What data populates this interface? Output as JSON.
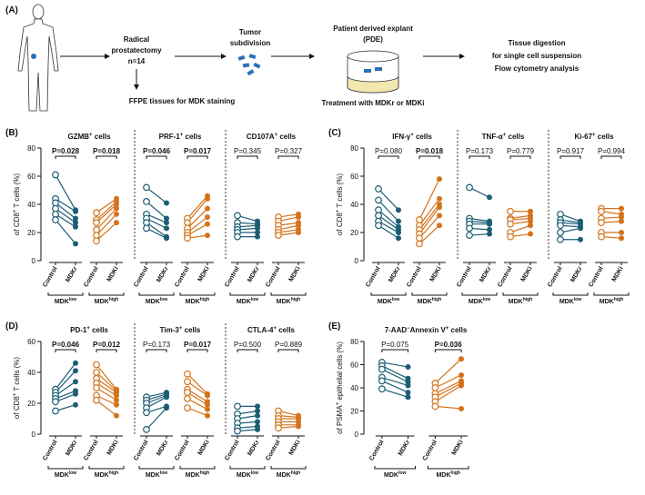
{
  "diagram": {
    "label": "(A)",
    "surgery": [
      "Radical",
      "prostatectomy",
      "n=14"
    ],
    "ffpe": "FFPE tissues for MDK staining",
    "subdivision": [
      "Tumor",
      "subdivision"
    ],
    "pde": [
      "Patient derived explant",
      "(PDE)"
    ],
    "treatment": "Treatment with MDKr or MDKi",
    "analysis": [
      "Tissue digestion",
      "for single cell suspension",
      "Flow cytometry analysis"
    ]
  },
  "chart_data": [
    {
      "type": "paired",
      "label": "(B)",
      "ylabel": [
        {
          "text": "of CD8"
        },
        {
          "sup": "+"
        },
        {
          "text": " T cells (%)"
        }
      ],
      "ylim": [
        0,
        80
      ],
      "yticks": [
        0,
        20,
        40,
        60,
        80
      ],
      "subplots": [
        {
          "title": [
            {
              "text": "GZMB"
            },
            {
              "sup": "+"
            },
            {
              "text": " cells"
            }
          ],
          "groups": [
            {
              "name": "MDK",
              "name_sup": "low",
              "xlabels": [
                "Control",
                "MDKr"
              ],
              "color": "#1b5e74",
              "p": "P=0.028",
              "p_bold": true,
              "before": [
                61,
                44,
                41,
                37,
                33,
                29
              ],
              "after": [
                36,
                35,
                30,
                27,
                24,
                12
              ]
            },
            {
              "name": "MDK",
              "name_sup": "high",
              "xlabels": [
                "Control",
                "MDKi"
              ],
              "color": "#d4731c",
              "p": "P=0.018",
              "p_bold": true,
              "before": [
                34,
                29,
                27,
                22,
                18,
                14
              ],
              "after": [
                44,
                42,
                40,
                37,
                33,
                27
              ]
            }
          ]
        },
        {
          "title": [
            {
              "text": "PRF-1"
            },
            {
              "sup": "+"
            },
            {
              "text": " cells"
            }
          ],
          "groups": [
            {
              "name": "MDK",
              "name_sup": "low",
              "xlabels": [
                "Control",
                "MDKr"
              ],
              "color": "#1b5e74",
              "p": "P=0.046",
              "p_bold": true,
              "before": [
                52,
                42,
                33,
                30,
                27,
                23
              ],
              "after": [
                41,
                30,
                27,
                23,
                17,
                16
              ]
            },
            {
              "name": "MDK",
              "name_sup": "high",
              "xlabels": [
                "Control",
                "MDKi"
              ],
              "color": "#d4731c",
              "p": "P=0.017",
              "p_bold": true,
              "before": [
                30,
                27,
                23,
                20,
                18,
                16
              ],
              "after": [
                46,
                44,
                37,
                31,
                26,
                18
              ]
            }
          ]
        },
        {
          "title": [
            {
              "text": "CD107A"
            },
            {
              "sup": "+"
            },
            {
              "text": " cells"
            }
          ],
          "groups": [
            {
              "name": "MDK",
              "name_sup": "low",
              "xlabels": [
                "Control",
                "MDKr"
              ],
              "color": "#1b5e74",
              "p": "P=0.345",
              "p_bold": false,
              "before": [
                32,
                27,
                24,
                22,
                20,
                17
              ],
              "after": [
                28,
                26,
                25,
                23,
                20,
                17
              ]
            },
            {
              "name": "MDK",
              "name_sup": "high",
              "xlabels": [
                "Control",
                "MDKi"
              ],
              "color": "#d4731c",
              "p": "P=0.327",
              "p_bold": false,
              "before": [
                31,
                28,
                25,
                22,
                20,
                18
              ],
              "after": [
                33,
                31,
                27,
                25,
                22,
                20
              ]
            }
          ]
        }
      ]
    },
    {
      "type": "paired",
      "label": "(C)",
      "ylabel": [
        {
          "text": "of CD8"
        },
        {
          "sup": "+"
        },
        {
          "text": " T cells (%)"
        }
      ],
      "ylim": [
        0,
        80
      ],
      "yticks": [
        0,
        20,
        40,
        60,
        80
      ],
      "subplots": [
        {
          "title": [
            {
              "text": "IFN-γ"
            },
            {
              "sup": "+"
            },
            {
              "text": " cells"
            }
          ],
          "groups": [
            {
              "name": "MDK",
              "name_sup": "low",
              "xlabels": [
                "Control",
                "MDKr"
              ],
              "color": "#1b5e74",
              "p": "P=0.080",
              "p_bold": false,
              "before": [
                51,
                43,
                36,
                32,
                28,
                25
              ],
              "after": [
                36,
                28,
                24,
                22,
                20,
                16
              ]
            },
            {
              "name": "MDK",
              "name_sup": "high",
              "xlabels": [
                "Control",
                "MDKi"
              ],
              "color": "#d4731c",
              "p": "P=0.018",
              "p_bold": true,
              "before": [
                29,
                25,
                22,
                19,
                16,
                12
              ],
              "after": [
                58,
                44,
                40,
                38,
                32,
                25
              ]
            }
          ]
        },
        {
          "title": [
            {
              "text": "TNF-α"
            },
            {
              "sup": "+"
            },
            {
              "text": " cells"
            }
          ],
          "groups": [
            {
              "name": "MDK",
              "name_sup": "low",
              "xlabels": [
                "Control",
                "MDKr"
              ],
              "color": "#1b5e74",
              "p": "P=0.173",
              "p_bold": false,
              "before": [
                52,
                30,
                28,
                26,
                23,
                18
              ],
              "after": [
                45,
                28,
                27,
                26,
                22,
                19
              ]
            },
            {
              "name": "MDK",
              "name_sup": "high",
              "xlabels": [
                "Control",
                "MDKi"
              ],
              "color": "#d4731c",
              "p": "P=0.779",
              "p_bold": false,
              "before": [
                35,
                30,
                29,
                26,
                20,
                17
              ],
              "after": [
                35,
                32,
                30,
                28,
                25,
                19
              ]
            }
          ]
        },
        {
          "title": [
            {
              "text": "Ki-67"
            },
            {
              "sup": "+"
            },
            {
              "text": " cells"
            }
          ],
          "groups": [
            {
              "name": "MDK",
              "name_sup": "low",
              "xlabels": [
                "Control",
                "MDKr"
              ],
              "color": "#1b5e74",
              "p": "P=0.917",
              "p_bold": false,
              "before": [
                33,
                29,
                27,
                25,
                20,
                15
              ],
              "after": [
                28,
                27,
                26,
                24,
                23,
                15
              ]
            },
            {
              "name": "MDK",
              "name_sup": "high",
              "xlabels": [
                "Control",
                "MDKi"
              ],
              "color": "#d4731c",
              "p": "P=0.994",
              "p_bold": false,
              "before": [
                37,
                35,
                30,
                27,
                20,
                17
              ],
              "after": [
                37,
                33,
                31,
                28,
                20,
                16
              ]
            }
          ]
        }
      ]
    },
    {
      "type": "paired",
      "label": "(D)",
      "ylabel": [
        {
          "text": "of CD8"
        },
        {
          "sup": "+"
        },
        {
          "text": " T cells (%)"
        }
      ],
      "ylim": [
        0,
        60
      ],
      "yticks": [
        0,
        20,
        40,
        60
      ],
      "subplots": [
        {
          "title": [
            {
              "text": "PD-1"
            },
            {
              "sup": "+"
            },
            {
              "text": " cells"
            }
          ],
          "groups": [
            {
              "name": "MDK",
              "name_sup": "low",
              "xlabels": [
                "Control",
                "MDKr"
              ],
              "color": "#1b5e74",
              "p": "P=0.046",
              "p_bold": true,
              "before": [
                29,
                27,
                25,
                23,
                21,
                15
              ],
              "after": [
                46,
                41,
                34,
                28,
                26,
                19
              ]
            },
            {
              "name": "MDK",
              "name_sup": "high",
              "xlabels": [
                "Control",
                "MDKi"
              ],
              "color": "#d4731c",
              "p": "P=0.012",
              "p_bold": true,
              "before": [
                45,
                40,
                36,
                33,
                30,
                25,
                22
              ],
              "after": [
                29,
                28,
                27,
                25,
                22,
                19,
                12
              ]
            }
          ]
        },
        {
          "title": [
            {
              "text": "Tim-3"
            },
            {
              "sup": "+"
            },
            {
              "text": " cells"
            }
          ],
          "groups": [
            {
              "name": "MDK",
              "name_sup": "low",
              "xlabels": [
                "Control",
                "MDKr"
              ],
              "color": "#1b5e74",
              "p": "P=0.173",
              "p_bold": false,
              "before": [
                24,
                22,
                20,
                17,
                14,
                3
              ],
              "after": [
                27,
                26,
                25,
                24,
                18,
                17
              ]
            },
            {
              "name": "MDK",
              "name_sup": "high",
              "xlabels": [
                "Control",
                "MDKi"
              ],
              "color": "#d4731c",
              "p": "P=0.017",
              "p_bold": true,
              "before": [
                39,
                34,
                29,
                27,
                23,
                17
              ],
              "after": [
                26,
                25,
                21,
                19,
                16,
                12
              ]
            }
          ]
        },
        {
          "title": [
            {
              "text": "CTLA-4"
            },
            {
              "sup": "+"
            },
            {
              "text": " cells"
            }
          ],
          "groups": [
            {
              "name": "MDK",
              "name_sup": "low",
              "xlabels": [
                "Control",
                "MDKr"
              ],
              "color": "#1b5e74",
              "p": "P=0.500",
              "p_bold": false,
              "before": [
                18,
                13,
                10,
                7,
                4,
                2
              ],
              "after": [
                18,
                15,
                12,
                8,
                5,
                3
              ]
            },
            {
              "name": "MDK",
              "name_sup": "high",
              "xlabels": [
                "Control",
                "MDKi"
              ],
              "color": "#d4731c",
              "p": "P=0.889",
              "p_bold": false,
              "before": [
                15,
                12,
                10,
                8,
                6,
                4
              ],
              "after": [
                12,
                11,
                10,
                8,
                6,
                5
              ]
            }
          ]
        }
      ]
    },
    {
      "type": "paired",
      "label": "(E)",
      "ylabel": [
        {
          "text": "of PSMA"
        },
        {
          "sup": "+"
        },
        {
          "text": " epithelial cells (%)"
        }
      ],
      "ylim": [
        0,
        80
      ],
      "yticks": [
        0,
        20,
        40,
        60,
        80
      ],
      "subplots": [
        {
          "title": [
            {
              "text": "7-AAD"
            },
            {
              "sup": "−"
            },
            {
              "text": "Annexin V"
            },
            {
              "sup": "+"
            },
            {
              "text": " cells"
            }
          ],
          "groups": [
            {
              "name": "MDK",
              "name_sup": "low",
              "xlabels": [
                "Control",
                "MDKr"
              ],
              "color": "#1b5e74",
              "p": "P=0.075",
              "p_bold": false,
              "before": [
                62,
                59,
                56,
                49,
                46,
                39
              ],
              "after": [
                58,
                48,
                45,
                42,
                36,
                32
              ]
            },
            {
              "name": "MDK",
              "name_sup": "high",
              "xlabels": [
                "Control",
                "MDKi"
              ],
              "color": "#d4731c",
              "p": "P=0.036",
              "p_bold": true,
              "before": [
                44,
                40,
                35,
                32,
                28,
                24
              ],
              "after": [
                65,
                51,
                46,
                44,
                42,
                22
              ]
            }
          ]
        }
      ]
    }
  ]
}
